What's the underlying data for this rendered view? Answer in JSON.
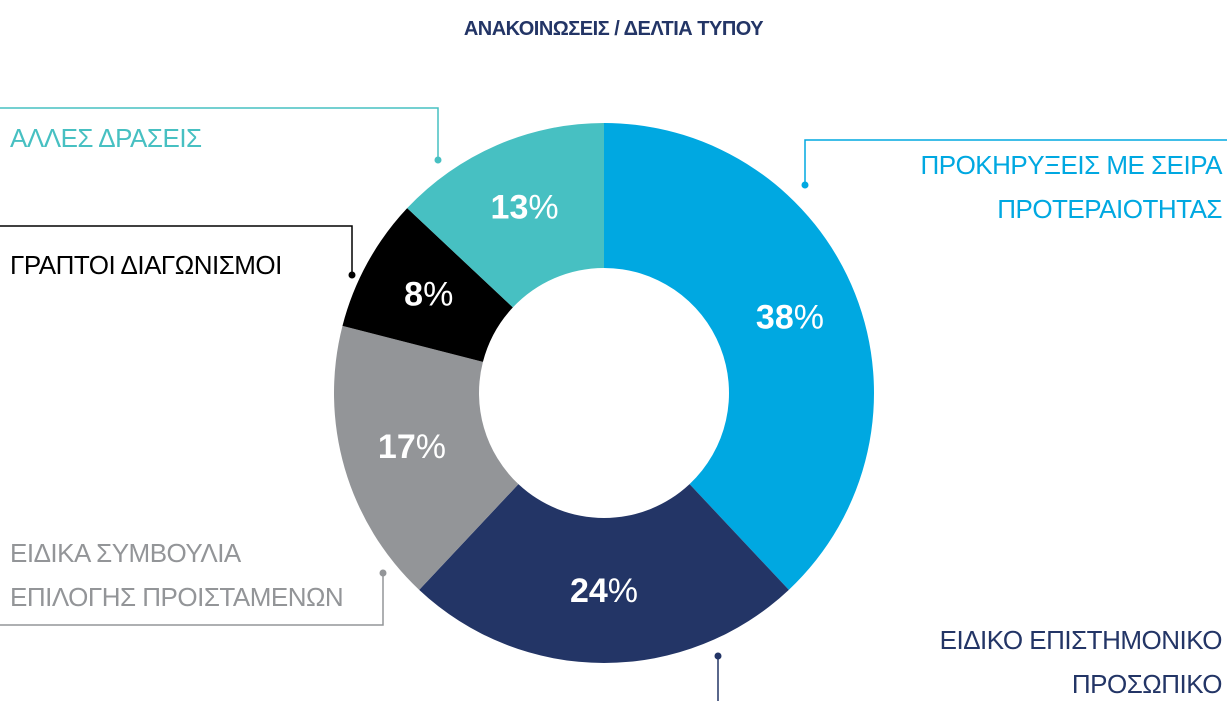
{
  "chart_data": {
    "type": "donut",
    "title": "ΑΝΑΚΟΙΝΩΣΕΙΣ / ΔΕΛΤΙΑ ΤΥΠΟΥ",
    "categories": [
      "ΠΡΟΚΗΡΥΞΕΙΣ ΜΕ ΣΕΙΡΑ\nΠΡΟΤΕΡΑΙΟΤΗΤΑΣ",
      "ΕΙΔΙΚΟ ΕΠΙΣΤΗΜΟΝΙΚΟ\nΠΡΟΣΩΠΙΚΟ",
      "ΕΙΔΙΚΑ ΣΥΜΒΟΥΛΙΑ\nΕΠΙΛΟΓΗΣ ΠΡΟΙΣΤΑΜΕΝΩΝ",
      "ΓΡΑΠΤΟΙ ΔΙΑΓΩΝΙΣΜΟΙ",
      "ΑΛΛΕΣ ΔΡΑΣΕΙΣ"
    ],
    "values": [
      38,
      24,
      17,
      8,
      13
    ],
    "value_labels": [
      "38%",
      "24%",
      "17%",
      "8%",
      "13%"
    ],
    "colors": [
      "#00a8e1",
      "#233566",
      "#939598",
      "#000000",
      "#47c0c2"
    ]
  }
}
